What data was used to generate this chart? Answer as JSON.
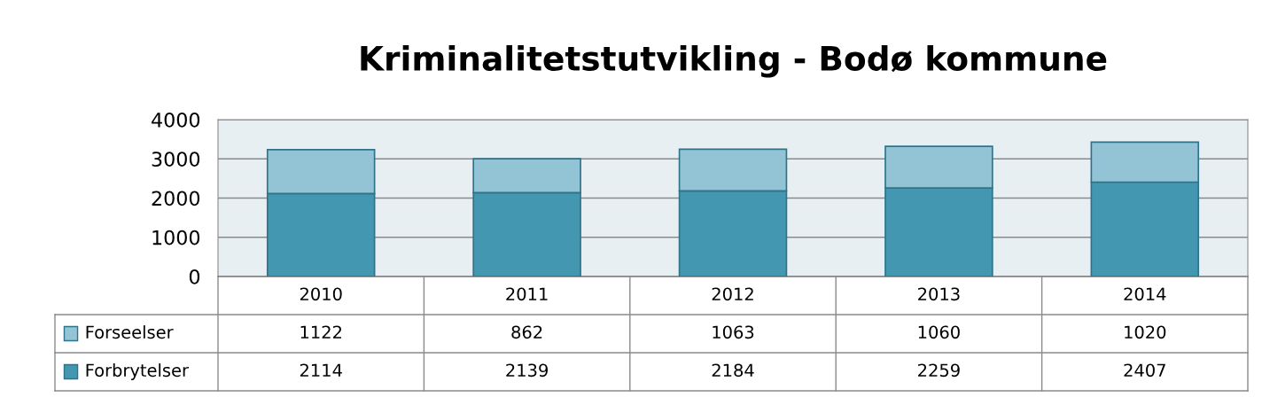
{
  "chart_data": {
    "type": "bar",
    "title": "Kriminalitetstutvikling - Bodø kommune",
    "categories": [
      "2010",
      "2011",
      "2012",
      "2013",
      "2014"
    ],
    "stacked": true,
    "series": [
      {
        "name": "Forbrytelser",
        "color": "#4397b0",
        "values": [
          2114,
          2139,
          2184,
          2259,
          2407
        ]
      },
      {
        "name": "Forseelser",
        "color": "#93c4d5",
        "values": [
          1122,
          862,
          1063,
          1060,
          1020
        ]
      }
    ],
    "ylim": [
      0,
      4000
    ],
    "yticks": [
      0,
      1000,
      2000,
      3000,
      4000
    ],
    "grid": "y",
    "data_labels": true,
    "legend": "bottom left"
  }
}
